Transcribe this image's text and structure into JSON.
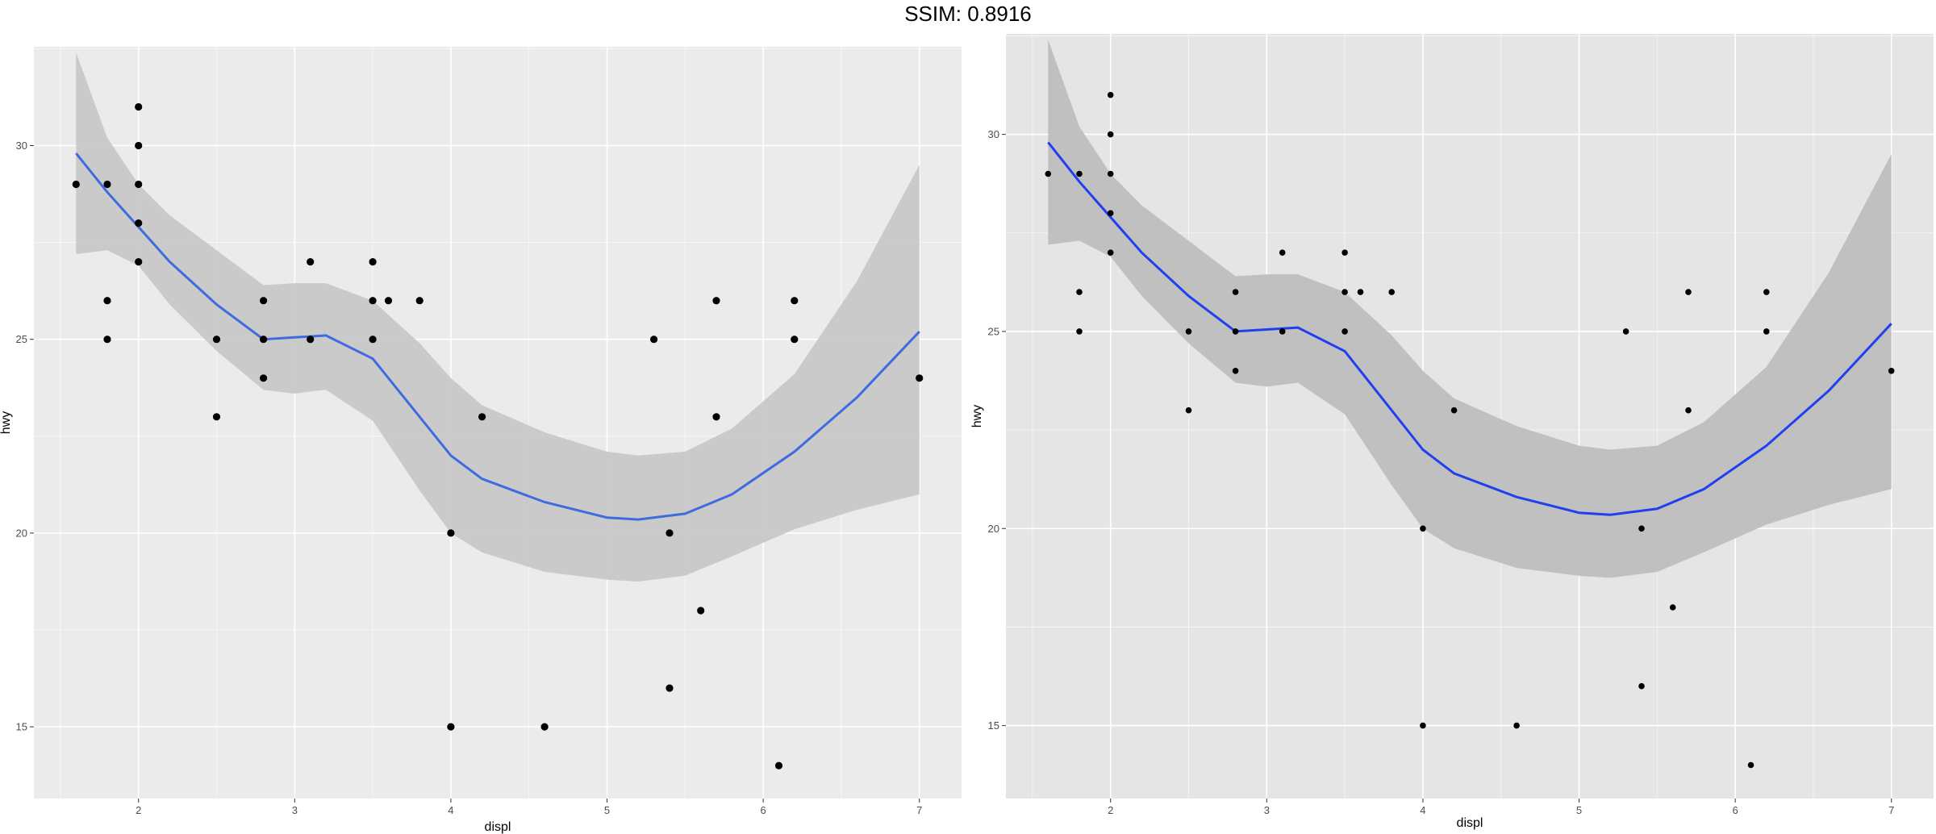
{
  "header": {
    "title": "SSIM: 0.8916"
  },
  "chart_data": [
    {
      "type": "scatter",
      "title": "",
      "xlabel": "displ",
      "ylabel": "hwy",
      "xlim": [
        1.33,
        7.27
      ],
      "ylim": [
        13.15,
        32.55
      ],
      "xticks": [
        2,
        3,
        4,
        5,
        6,
        7
      ],
      "yticks": [
        15,
        20,
        25,
        30
      ],
      "grid": true,
      "colors": {
        "panel": "#ebebeb",
        "grid": "#ffffff",
        "points": "#000000",
        "smooth": "#3f6be0",
        "band": "#c8c8c8"
      },
      "points": [
        [
          1.6,
          29
        ],
        [
          1.8,
          29
        ],
        [
          1.8,
          26
        ],
        [
          1.8,
          25
        ],
        [
          2.0,
          31
        ],
        [
          2.0,
          30
        ],
        [
          2.0,
          29
        ],
        [
          2.0,
          28
        ],
        [
          2.0,
          27
        ],
        [
          2.5,
          25
        ],
        [
          2.5,
          23
        ],
        [
          2.8,
          26
        ],
        [
          2.8,
          25
        ],
        [
          2.8,
          24
        ],
        [
          3.1,
          27
        ],
        [
          3.1,
          25
        ],
        [
          3.5,
          27
        ],
        [
          3.5,
          26
        ],
        [
          3.5,
          25
        ],
        [
          3.6,
          26
        ],
        [
          3.8,
          26
        ],
        [
          4.0,
          20
        ],
        [
          4.0,
          15
        ],
        [
          4.2,
          23
        ],
        [
          4.6,
          15
        ],
        [
          5.3,
          25
        ],
        [
          5.4,
          20
        ],
        [
          5.4,
          16
        ],
        [
          5.6,
          18
        ],
        [
          5.7,
          26
        ],
        [
          5.7,
          23
        ],
        [
          6.1,
          14
        ],
        [
          6.2,
          26
        ],
        [
          6.2,
          25
        ],
        [
          7.0,
          24
        ]
      ],
      "smooth": {
        "x": [
          1.6,
          1.8,
          2.0,
          2.2,
          2.5,
          2.8,
          3.0,
          3.2,
          3.5,
          3.8,
          4.0,
          4.2,
          4.6,
          5.0,
          5.2,
          5.5,
          5.8,
          6.2,
          6.6,
          7.0
        ],
        "y": [
          29.8,
          28.8,
          27.9,
          27.0,
          25.9,
          25.0,
          25.05,
          25.1,
          24.5,
          23.0,
          22.0,
          21.4,
          20.8,
          20.4,
          20.35,
          20.5,
          21.0,
          22.1,
          23.5,
          25.2
        ],
        "upper": [
          32.4,
          30.2,
          29.0,
          28.2,
          27.3,
          26.4,
          26.45,
          26.45,
          26.0,
          24.9,
          24.0,
          23.3,
          22.6,
          22.1,
          22.0,
          22.1,
          22.7,
          24.1,
          26.5,
          29.5
        ],
        "lower": [
          27.2,
          27.3,
          26.9,
          25.9,
          24.7,
          23.7,
          23.6,
          23.7,
          22.9,
          21.1,
          20.0,
          19.5,
          19.0,
          18.8,
          18.75,
          18.9,
          19.4,
          20.1,
          20.6,
          21.0
        ]
      }
    },
    {
      "type": "scatter",
      "title": "",
      "xlabel": "displ",
      "ylabel": "hwy",
      "xlim": [
        1.33,
        7.27
      ],
      "ylim": [
        13.15,
        32.55
      ],
      "xticks": [
        2,
        3,
        4,
        5,
        6,
        7
      ],
      "yticks": [
        15,
        20,
        25,
        30
      ],
      "grid": true,
      "colors": {
        "panel": "#e5e5e5",
        "grid": "#ffffff",
        "points": "#000000",
        "smooth": "#2040f0",
        "band": "#bebebe"
      },
      "points": [
        [
          1.6,
          29
        ],
        [
          1.8,
          29
        ],
        [
          1.8,
          26
        ],
        [
          1.8,
          25
        ],
        [
          2.0,
          31
        ],
        [
          2.0,
          30
        ],
        [
          2.0,
          29
        ],
        [
          2.0,
          28
        ],
        [
          2.0,
          27
        ],
        [
          2.5,
          25
        ],
        [
          2.5,
          23
        ],
        [
          2.8,
          26
        ],
        [
          2.8,
          25
        ],
        [
          2.8,
          24
        ],
        [
          3.1,
          27
        ],
        [
          3.1,
          25
        ],
        [
          3.5,
          27
        ],
        [
          3.5,
          26
        ],
        [
          3.5,
          25
        ],
        [
          3.6,
          26
        ],
        [
          3.8,
          26
        ],
        [
          4.0,
          20
        ],
        [
          4.0,
          15
        ],
        [
          4.2,
          23
        ],
        [
          4.6,
          15
        ],
        [
          5.3,
          25
        ],
        [
          5.4,
          20
        ],
        [
          5.4,
          16
        ],
        [
          5.6,
          18
        ],
        [
          5.7,
          26
        ],
        [
          5.7,
          23
        ],
        [
          6.1,
          14
        ],
        [
          6.2,
          26
        ],
        [
          6.2,
          25
        ],
        [
          7.0,
          24
        ]
      ],
      "smooth": {
        "x": [
          1.6,
          1.8,
          2.0,
          2.2,
          2.5,
          2.8,
          3.0,
          3.2,
          3.5,
          3.8,
          4.0,
          4.2,
          4.6,
          5.0,
          5.2,
          5.5,
          5.8,
          6.2,
          6.6,
          7.0
        ],
        "y": [
          29.8,
          28.8,
          27.9,
          27.0,
          25.9,
          25.0,
          25.05,
          25.1,
          24.5,
          23.0,
          22.0,
          21.4,
          20.8,
          20.4,
          20.35,
          20.5,
          21.0,
          22.1,
          23.5,
          25.2
        ],
        "upper": [
          32.4,
          30.2,
          29.0,
          28.2,
          27.3,
          26.4,
          26.45,
          26.45,
          26.0,
          24.9,
          24.0,
          23.3,
          22.6,
          22.1,
          22.0,
          22.1,
          22.7,
          24.1,
          26.5,
          29.5
        ],
        "lower": [
          27.2,
          27.3,
          26.9,
          25.9,
          24.7,
          23.7,
          23.6,
          23.7,
          22.9,
          21.1,
          20.0,
          19.5,
          19.0,
          18.8,
          18.75,
          18.9,
          19.4,
          20.1,
          20.6,
          21.0
        ]
      }
    }
  ]
}
